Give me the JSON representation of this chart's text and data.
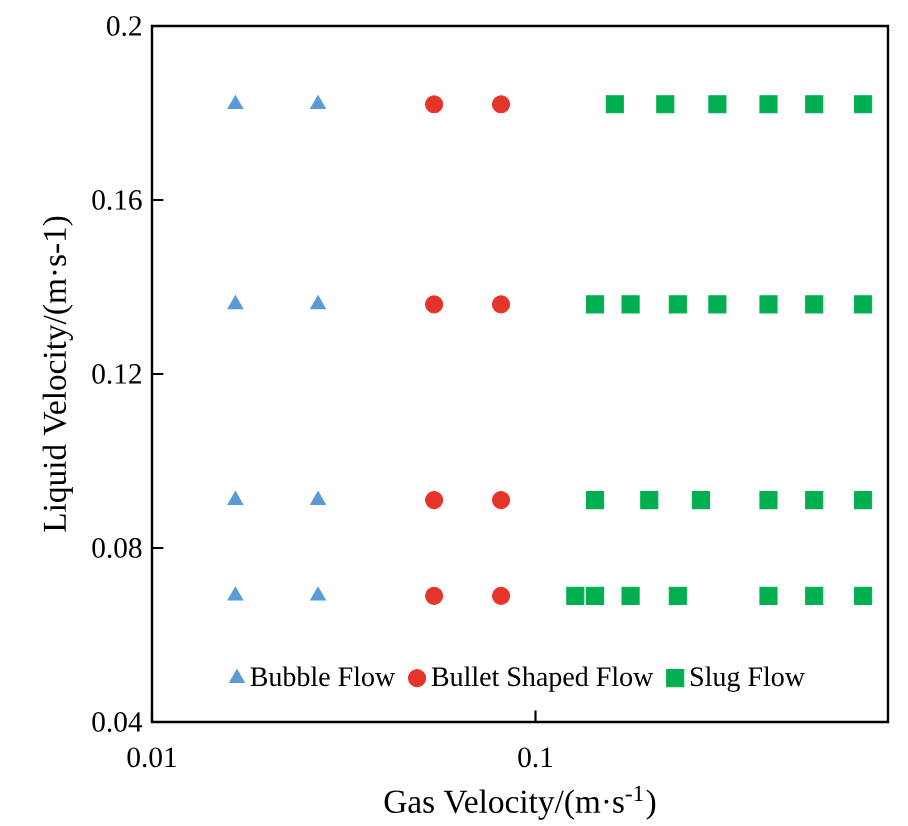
{
  "chart_data": {
    "type": "scatter",
    "xlabel": "Gas Velocity/(m·s$^{-1}$)",
    "ylabel": "Liquid Velocity/(m·s-1)",
    "log": "x",
    "xlim": [
      0.01,
      0.83
    ],
    "xticks": [
      0.01,
      0.1
    ],
    "ylim": [
      0.04,
      0.2
    ],
    "yticks": [
      0.04,
      0.08,
      0.12,
      0.16,
      0.2
    ],
    "grid": false,
    "legend": "bottom",
    "series": [
      {
        "name": "Bubble Flow",
        "color": "#5b9bd5",
        "marker": "triangle",
        "x": [
          0.0165,
          0.0271,
          0.0165,
          0.0271,
          0.0165,
          0.0271,
          0.0165,
          0.0271
        ],
        "values": [
          0.182,
          0.182,
          0.136,
          0.136,
          0.091,
          0.091,
          0.069,
          0.069
        ]
      },
      {
        "name": "Bullet Shaped Flow",
        "color": "#e5352b",
        "marker": "circle",
        "x": [
          0.0544,
          0.0813,
          0.0544,
          0.0813,
          0.0544,
          0.0813,
          0.0544,
          0.0813
        ],
        "values": [
          0.182,
          0.182,
          0.136,
          0.136,
          0.091,
          0.091,
          0.069,
          0.069
        ]
      },
      {
        "name": "Slug Flow",
        "color": "#00b050",
        "marker": "square",
        "x": [
          0.161,
          0.218,
          0.298,
          0.405,
          0.533,
          0.715,
          0.143,
          0.177,
          0.235,
          0.298,
          0.405,
          0.533,
          0.715,
          0.143,
          0.198,
          0.27,
          0.405,
          0.533,
          0.715,
          0.127,
          0.143,
          0.177,
          0.235,
          0.405,
          0.533,
          0.715
        ],
        "values": [
          0.182,
          0.182,
          0.182,
          0.182,
          0.182,
          0.182,
          0.136,
          0.136,
          0.136,
          0.136,
          0.136,
          0.136,
          0.136,
          0.091,
          0.091,
          0.091,
          0.091,
          0.091,
          0.091,
          0.069,
          0.069,
          0.069,
          0.069,
          0.069,
          0.069,
          0.069
        ]
      }
    ]
  }
}
